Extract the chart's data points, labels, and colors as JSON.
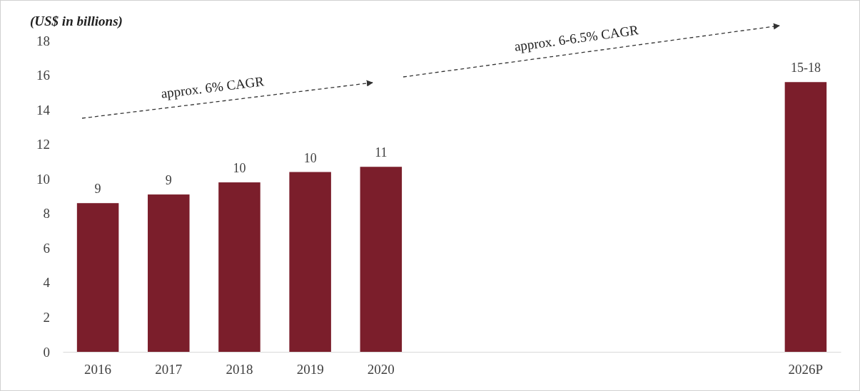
{
  "chart_data": {
    "type": "bar",
    "ylabel": "(US$ in billions)",
    "categories": [
      "2016",
      "2017",
      "2018",
      "2019",
      "2020",
      null,
      null,
      null,
      null,
      null,
      "2026P"
    ],
    "values": [
      8.6,
      9.1,
      9.8,
      10.4,
      10.7,
      null,
      null,
      null,
      null,
      null,
      15.6
    ],
    "value_labels": [
      "9",
      "9",
      "10",
      "10",
      "11",
      null,
      null,
      null,
      null,
      null,
      "15-18"
    ],
    "color": "#7b1e2b",
    "ylim": [
      0,
      18
    ],
    "yticks": [
      0,
      2,
      4,
      6,
      8,
      10,
      12,
      14,
      16,
      18
    ],
    "annotations": [
      "approx. 6% CAGR",
      "approx. 6-6.5% CAGR"
    ]
  }
}
